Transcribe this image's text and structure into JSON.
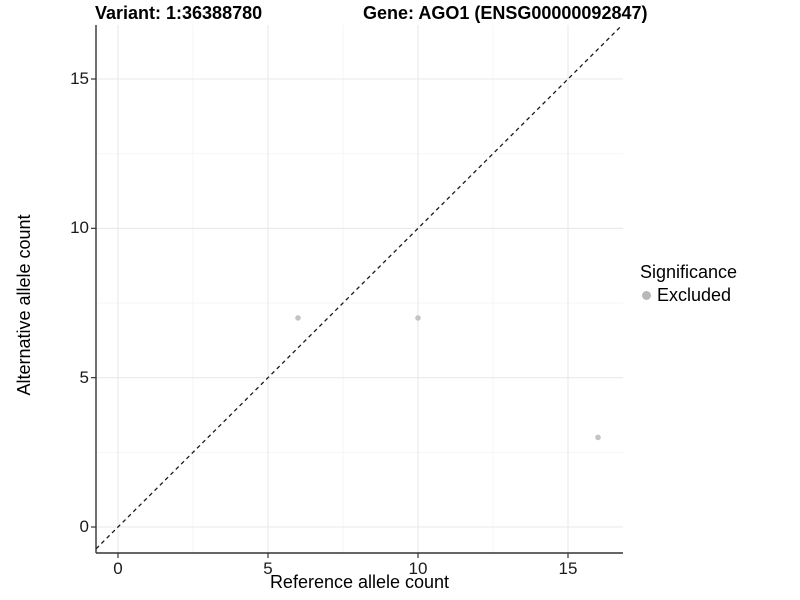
{
  "chart_data": {
    "type": "scatter",
    "title_left": "Variant: 1:36388780",
    "title_right": "Gene: AGO1 (ENSG00000092847)",
    "xlabel": "Reference allele count",
    "ylabel": "Alternative allele count",
    "x_ticks": [
      0,
      5,
      10,
      15
    ],
    "y_ticks": [
      0,
      5,
      10,
      15
    ],
    "x_minor_ticks": [
      2.5,
      7.5,
      12.5
    ],
    "y_minor_ticks": [
      2.5,
      7.5,
      12.5
    ],
    "xlim": [
      -0.73,
      16.83
    ],
    "ylim": [
      -0.87,
      16.81
    ],
    "grid": true,
    "identity_line": {
      "type": "dashed",
      "slope": 1,
      "intercept": 0,
      "color": "#1a1a1a"
    },
    "series": [
      {
        "name": "Excluded",
        "color": "#c4c4c4",
        "points": [
          {
            "x": 6,
            "y": 7
          },
          {
            "x": 10,
            "y": 7
          },
          {
            "x": 16,
            "y": 3
          }
        ]
      }
    ],
    "legend": {
      "title": "Significance",
      "position": "right",
      "items": [
        {
          "label": "Excluded",
          "color": "#b8b8b8"
        }
      ]
    },
    "colors": {
      "background": "#ffffff",
      "grid_major": "#e9e9e9",
      "grid_minor": "#f5f5f5",
      "axis_line": "#333333",
      "tick_mark": "#333333"
    }
  }
}
